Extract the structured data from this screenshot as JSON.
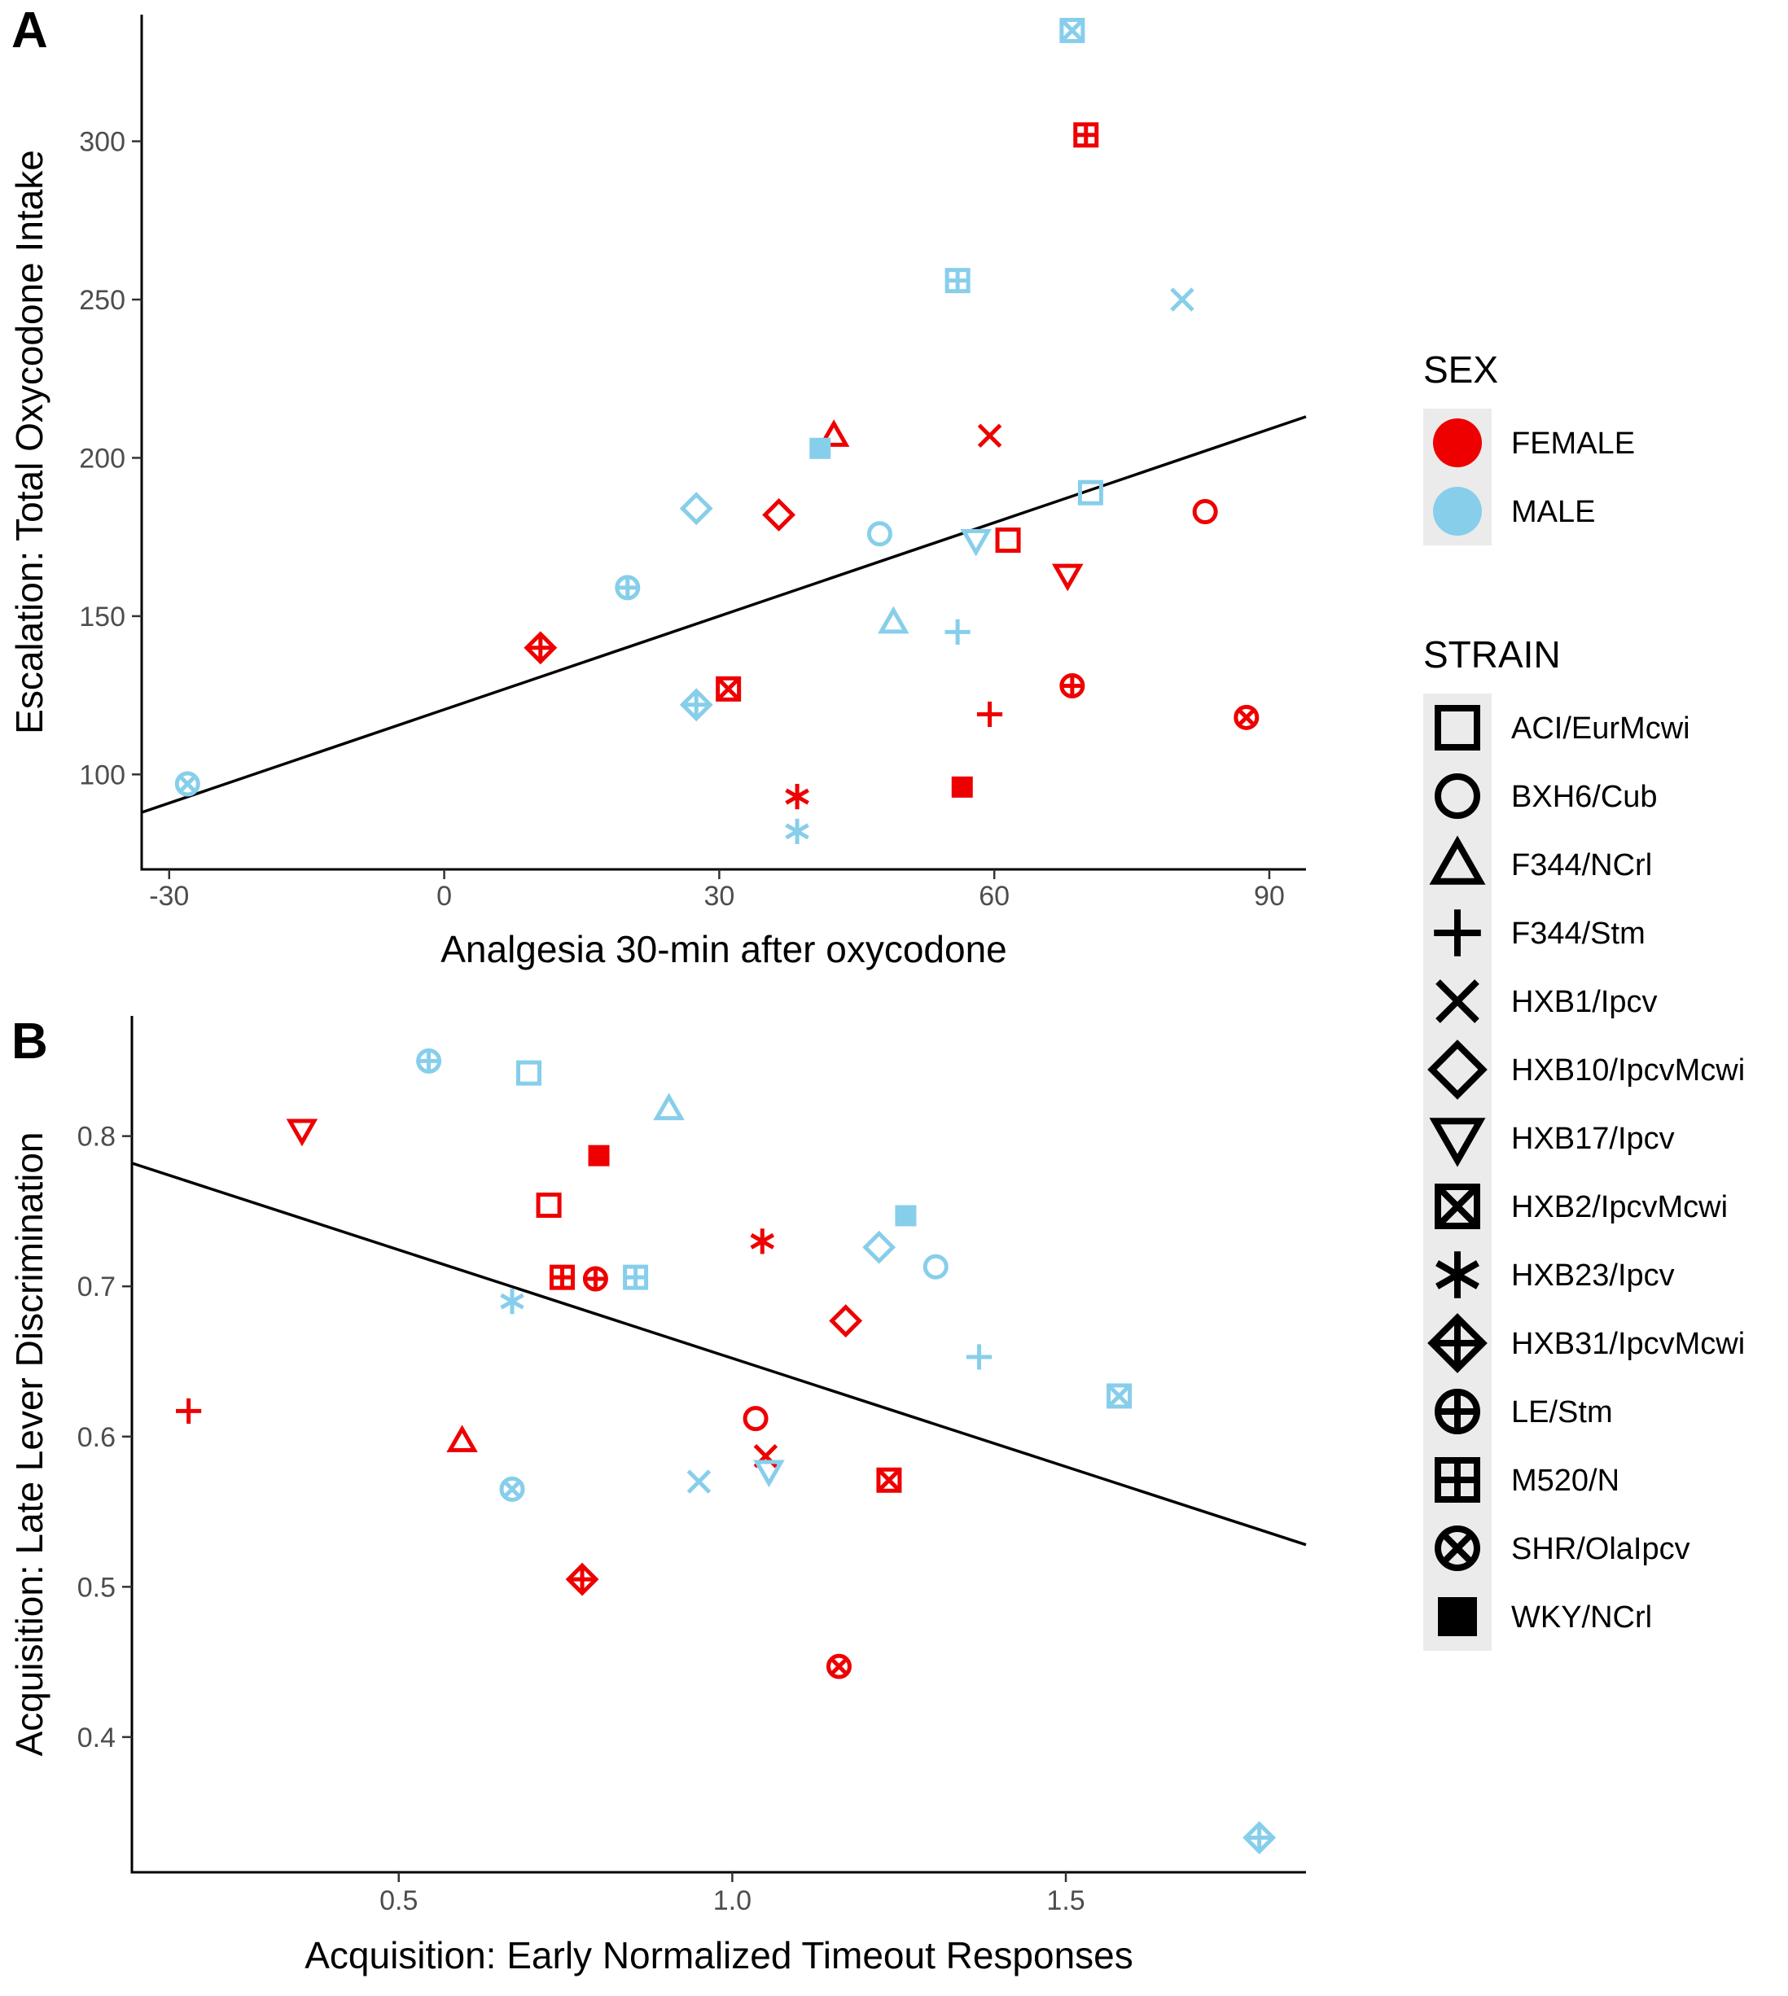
{
  "colors": {
    "FEMALE": "#ee0000",
    "MALE": "#87ceeb",
    "legend_bg": "#ebebeb",
    "axis": "#000000",
    "fit": "#000000"
  },
  "legend": {
    "sex_title": "SEX",
    "sex_items": [
      {
        "label": "FEMALE",
        "color_key": "FEMALE"
      },
      {
        "label": "MALE",
        "color_key": "MALE"
      }
    ],
    "strain_title": "STRAIN",
    "strain_items": [
      {
        "label": "ACI/EurMcwi",
        "shape": "square"
      },
      {
        "label": "BXH6/Cub",
        "shape": "circle"
      },
      {
        "label": "F344/NCrl",
        "shape": "triangle"
      },
      {
        "label": "F344/Stm",
        "shape": "plus"
      },
      {
        "label": "HXB1/Ipcv",
        "shape": "cross"
      },
      {
        "label": "HXB10/IpcvMcwi",
        "shape": "diamond"
      },
      {
        "label": "HXB17/Ipcv",
        "shape": "triangle-down"
      },
      {
        "label": "HXB2/IpcvMcwi",
        "shape": "square-cross"
      },
      {
        "label": "HXB23/Ipcv",
        "shape": "asterisk"
      },
      {
        "label": "HXB31/IpcvMcwi",
        "shape": "diamond-plus"
      },
      {
        "label": "LE/Stm",
        "shape": "circle-plus"
      },
      {
        "label": "M520/N",
        "shape": "square-plus"
      },
      {
        "label": "SHR/OlaIpcv",
        "shape": "circle-cross"
      },
      {
        "label": "WKY/NCrl",
        "shape": "square-filled"
      }
    ]
  },
  "chart_data": [
    {
      "panel": "A",
      "type": "scatter",
      "xlabel": "Analgesia 30-min after oxycodone",
      "ylabel": "Escalation: Total Oxycodone Intake",
      "xlim": [
        -33,
        94
      ],
      "ylim": [
        70,
        340
      ],
      "xticks": [
        -30,
        0,
        30,
        60,
        90
      ],
      "xtick_labels": [
        "-30",
        "0",
        "30",
        "60",
        "90"
      ],
      "yticks": [
        100,
        150,
        200,
        250,
        300
      ],
      "ytick_labels": [
        "100",
        "150",
        "200",
        "250",
        "300"
      ],
      "fit_line": {
        "x": [
          -33,
          94
        ],
        "y": [
          88,
          213
        ]
      },
      "points": [
        {
          "strain": "HXB2/IpcvMcwi",
          "sex": "MALE",
          "x": 68.5,
          "y": 335
        },
        {
          "strain": "M520/N",
          "sex": "FEMALE",
          "x": 70,
          "y": 302
        },
        {
          "strain": "M520/N",
          "sex": "MALE",
          "x": 56,
          "y": 256
        },
        {
          "strain": "HXB1/Ipcv",
          "sex": "MALE",
          "x": 80.5,
          "y": 250
        },
        {
          "strain": "F344/NCrl",
          "sex": "FEMALE",
          "x": 42.5,
          "y": 207
        },
        {
          "strain": "HXB1/Ipcv",
          "sex": "FEMALE",
          "x": 59.5,
          "y": 207
        },
        {
          "strain": "WKY/NCrl",
          "sex": "MALE",
          "x": 41,
          "y": 203
        },
        {
          "strain": "ACI/EurMcwi",
          "sex": "MALE",
          "x": 70.5,
          "y": 189
        },
        {
          "strain": "HXB10/IpcvMcwi",
          "sex": "MALE",
          "x": 27.5,
          "y": 184
        },
        {
          "strain": "BXH6/Cub",
          "sex": "FEMALE",
          "x": 83,
          "y": 183
        },
        {
          "strain": "HXB10/IpcvMcwi",
          "sex": "FEMALE",
          "x": 36.5,
          "y": 182
        },
        {
          "strain": "BXH6/Cub",
          "sex": "MALE",
          "x": 47.5,
          "y": 176
        },
        {
          "strain": "HXB17/Ipcv",
          "sex": "MALE",
          "x": 58,
          "y": 174
        },
        {
          "strain": "ACI/EurMcwi",
          "sex": "FEMALE",
          "x": 61.5,
          "y": 174
        },
        {
          "strain": "HXB17/Ipcv",
          "sex": "FEMALE",
          "x": 68,
          "y": 163
        },
        {
          "strain": "LE/Stm",
          "sex": "MALE",
          "x": 20,
          "y": 159
        },
        {
          "strain": "F344/NCrl",
          "sex": "MALE",
          "x": 49,
          "y": 148
        },
        {
          "strain": "F344/Stm",
          "sex": "MALE",
          "x": 56,
          "y": 145
        },
        {
          "strain": "HXB31/IpcvMcwi",
          "sex": "FEMALE",
          "x": 10.5,
          "y": 140
        },
        {
          "strain": "LE/Stm",
          "sex": "FEMALE",
          "x": 68.5,
          "y": 128
        },
        {
          "strain": "HXB2/IpcvMcwi",
          "sex": "FEMALE",
          "x": 31,
          "y": 127
        },
        {
          "strain": "HXB31/IpcvMcwi",
          "sex": "MALE",
          "x": 27.5,
          "y": 122
        },
        {
          "strain": "F344/Stm",
          "sex": "FEMALE",
          "x": 59.5,
          "y": 119
        },
        {
          "strain": "SHR/OlaIpcv",
          "sex": "FEMALE",
          "x": 87.5,
          "y": 118
        },
        {
          "strain": "SHR/OlaIpcv",
          "sex": "MALE",
          "x": -28,
          "y": 97
        },
        {
          "strain": "WKY/NCrl",
          "sex": "FEMALE",
          "x": 56.5,
          "y": 96
        },
        {
          "strain": "HXB23/Ipcv",
          "sex": "FEMALE",
          "x": 38.5,
          "y": 93
        },
        {
          "strain": "HXB23/Ipcv",
          "sex": "MALE",
          "x": 38.5,
          "y": 82
        }
      ]
    },
    {
      "panel": "B",
      "type": "scatter",
      "xlabel": "Acquisition: Early Normalized Timeout Responses",
      "ylabel": "Acquisition: Late Lever Discrimination",
      "xlim": [
        0.1,
        1.86
      ],
      "ylim": [
        0.31,
        0.88
      ],
      "xticks": [
        0.5,
        1.0,
        1.5
      ],
      "xtick_labels": [
        "0.5",
        "1.0",
        "1.5"
      ],
      "yticks": [
        0.4,
        0.5,
        0.6,
        0.7,
        0.8
      ],
      "ytick_labels": [
        "0.4",
        "0.5",
        "0.6",
        "0.7",
        "0.8"
      ],
      "fit_line": {
        "x": [
          0.1,
          1.86
        ],
        "y": [
          0.782,
          0.528
        ]
      },
      "points": [
        {
          "strain": "LE/Stm",
          "sex": "MALE",
          "x": 0.545,
          "y": 0.85
        },
        {
          "strain": "ACI/EurMcwi",
          "sex": "MALE",
          "x": 0.695,
          "y": 0.842
        },
        {
          "strain": "F344/NCrl",
          "sex": "MALE",
          "x": 0.905,
          "y": 0.818
        },
        {
          "strain": "HXB17/Ipcv",
          "sex": "FEMALE",
          "x": 0.355,
          "y": 0.804
        },
        {
          "strain": "WKY/NCrl",
          "sex": "FEMALE",
          "x": 0.8,
          "y": 0.787
        },
        {
          "strain": "ACI/EurMcwi",
          "sex": "FEMALE",
          "x": 0.725,
          "y": 0.754
        },
        {
          "strain": "WKY/NCrl",
          "sex": "MALE",
          "x": 1.26,
          "y": 0.747
        },
        {
          "strain": "HXB23/Ipcv",
          "sex": "FEMALE",
          "x": 1.045,
          "y": 0.73
        },
        {
          "strain": "HXB10/IpcvMcwi",
          "sex": "MALE",
          "x": 1.22,
          "y": 0.726
        },
        {
          "strain": "BXH6/Cub",
          "sex": "MALE",
          "x": 1.305,
          "y": 0.713
        },
        {
          "strain": "M520/N",
          "sex": "FEMALE",
          "x": 0.745,
          "y": 0.706
        },
        {
          "strain": "LE/Stm",
          "sex": "FEMALE",
          "x": 0.795,
          "y": 0.705
        },
        {
          "strain": "M520/N",
          "sex": "MALE",
          "x": 0.855,
          "y": 0.706
        },
        {
          "strain": "HXB23/Ipcv",
          "sex": "MALE",
          "x": 0.67,
          "y": 0.69
        },
        {
          "strain": "HXB10/IpcvMcwi",
          "sex": "FEMALE",
          "x": 1.17,
          "y": 0.677
        },
        {
          "strain": "F344/Stm",
          "sex": "MALE",
          "x": 1.37,
          "y": 0.653
        },
        {
          "strain": "HXB2/IpcvMcwi",
          "sex": "MALE",
          "x": 1.58,
          "y": 0.627
        },
        {
          "strain": "F344/Stm",
          "sex": "FEMALE",
          "x": 0.185,
          "y": 0.617
        },
        {
          "strain": "BXH6/Cub",
          "sex": "FEMALE",
          "x": 1.035,
          "y": 0.612
        },
        {
          "strain": "F344/NCrl",
          "sex": "FEMALE",
          "x": 0.595,
          "y": 0.597
        },
        {
          "strain": "HXB1/Ipcv",
          "sex": "FEMALE",
          "x": 1.05,
          "y": 0.587
        },
        {
          "strain": "HXB17/Ipcv",
          "sex": "MALE",
          "x": 1.055,
          "y": 0.577
        },
        {
          "strain": "HXB2/IpcvMcwi",
          "sex": "FEMALE",
          "x": 1.235,
          "y": 0.571
        },
        {
          "strain": "HXB1/Ipcv",
          "sex": "MALE",
          "x": 0.95,
          "y": 0.57
        },
        {
          "strain": "SHR/OlaIpcv",
          "sex": "MALE",
          "x": 0.67,
          "y": 0.565
        },
        {
          "strain": "HXB31/IpcvMcwi",
          "sex": "FEMALE",
          "x": 0.775,
          "y": 0.505
        },
        {
          "strain": "SHR/OlaIpcv",
          "sex": "FEMALE",
          "x": 1.16,
          "y": 0.447
        },
        {
          "strain": "HXB31/IpcvMcwi",
          "sex": "MALE",
          "x": 1.79,
          "y": 0.333
        }
      ]
    }
  ]
}
